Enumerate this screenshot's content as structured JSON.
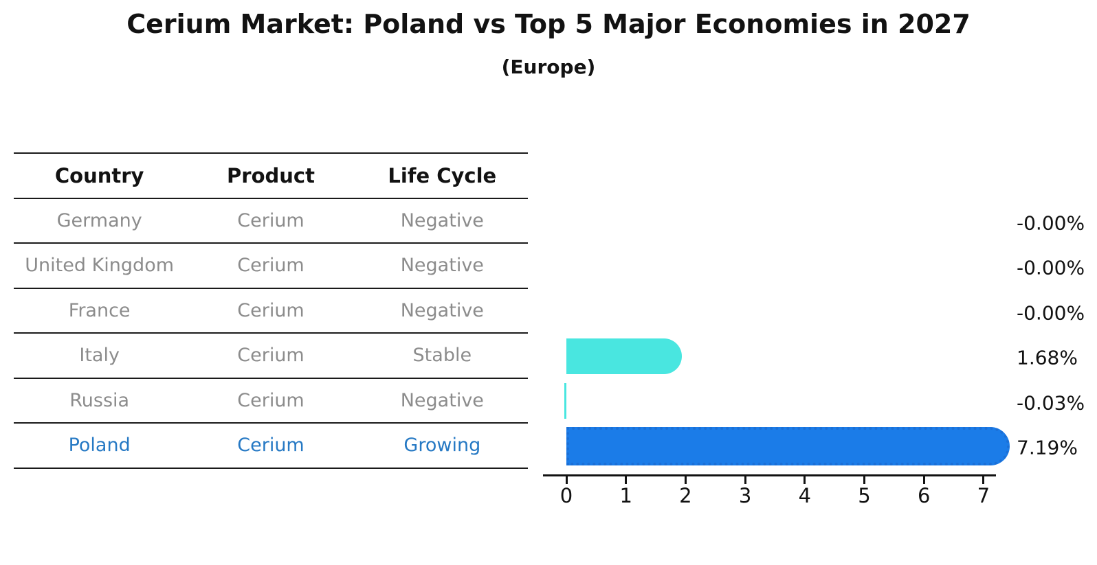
{
  "title": "Cerium Market: Poland vs Top 5 Major Economies in 2027",
  "subtitle": "(Europe)",
  "table": {
    "headers": [
      "Country",
      "Product",
      "Life Cycle"
    ],
    "rows": [
      {
        "country": "Germany",
        "product": "Cerium",
        "life_cycle": "Negative"
      },
      {
        "country": "United Kingdom",
        "product": "Cerium",
        "life_cycle": "Negative"
      },
      {
        "country": "France",
        "product": "Cerium",
        "life_cycle": "Negative"
      },
      {
        "country": "Italy",
        "product": "Cerium",
        "life_cycle": "Stable"
      },
      {
        "country": "Russia",
        "product": "Cerium",
        "life_cycle": "Negative"
      },
      {
        "country": "Poland",
        "product": "Cerium",
        "life_cycle": "Growing"
      }
    ],
    "highlight_row": "Poland"
  },
  "chart_data": {
    "type": "bar",
    "orientation": "horizontal",
    "title": "Cerium Market: Poland vs Top 5 Major Economies in 2027 (Europe)",
    "categories": [
      "Germany",
      "United Kingdom",
      "France",
      "Italy",
      "Russia",
      "Poland"
    ],
    "values": [
      -0.0,
      -0.0,
      -0.0,
      1.68,
      -0.03,
      7.19
    ],
    "value_labels": [
      "-0.00%",
      "-0.00%",
      "-0.00%",
      "1.68%",
      "-0.03%",
      "7.19%"
    ],
    "xlabel": "",
    "ylabel": "",
    "xticks": [
      0,
      1,
      2,
      3,
      4,
      5,
      6,
      7
    ],
    "xlim": [
      -0.4,
      7.6
    ],
    "grid": false,
    "legend": false,
    "highlight_index": 5,
    "default_bar_color": "#49e6e0",
    "highlight_bar_color": "#1b7ce8",
    "highlight_border_color": "#1b6fd6",
    "text_color": "#121212",
    "muted_text_color": "#8c8c8c",
    "highlight_text_color": "#2679c4"
  }
}
